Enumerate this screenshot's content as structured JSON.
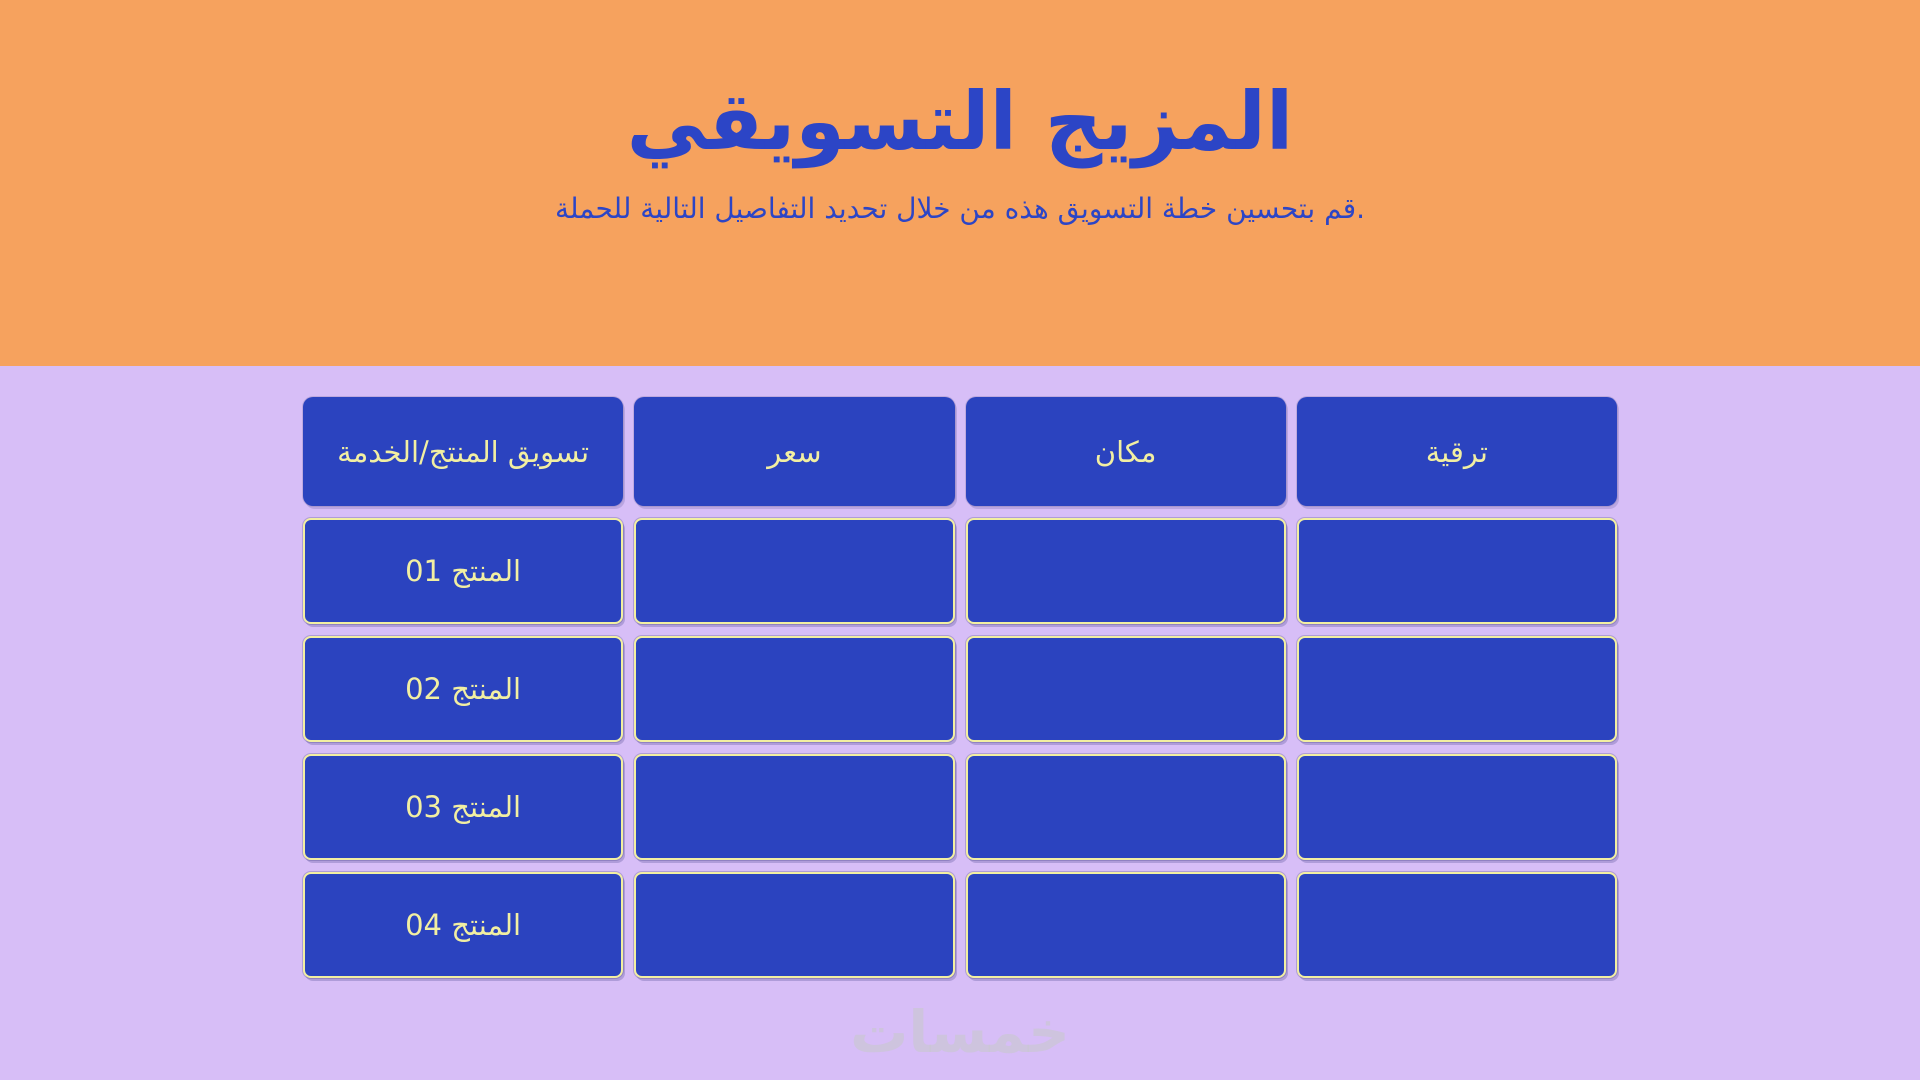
{
  "page": {
    "background_color": "#D7BEF7",
    "accent_blue": "#2B43BF",
    "accent_yellow": "#F2EFA2"
  },
  "header": {
    "background_color": "#F6A25E",
    "text_color": "#2C45C6",
    "title": "المزيج التسويقي",
    "subtitle": "قم بتحسين خطة التسويق هذه من خلال تحديد التفاصيل التالية للحملة."
  },
  "table": {
    "cell_background": "#2B43BF",
    "border_color": "#F2EFA2",
    "columns": [
      "تسويق المنتج/الخدمة",
      "سعر",
      "مكان",
      "ترقية"
    ],
    "rows": [
      {
        "label": "المنتج 01",
        "price": "",
        "place": "",
        "promotion": ""
      },
      {
        "label": "المنتج 02",
        "price": "",
        "place": "",
        "promotion": ""
      },
      {
        "label": "المنتج 03",
        "price": "",
        "place": "",
        "promotion": ""
      },
      {
        "label": "المنتج 04",
        "price": "",
        "place": "",
        "promotion": ""
      }
    ]
  },
  "watermark": {
    "text": "خمسات"
  }
}
